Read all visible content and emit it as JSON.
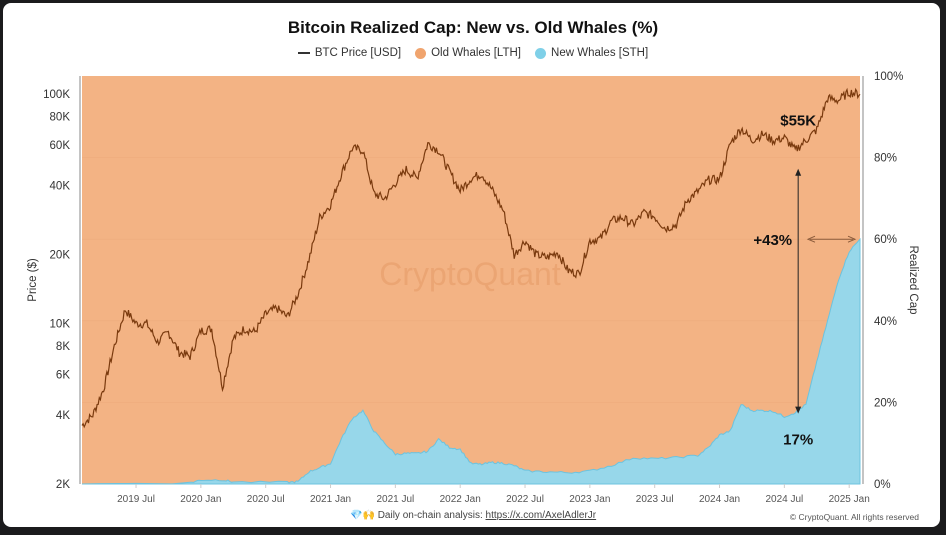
{
  "chart_data": {
    "type": "area",
    "title": "Bitcoin Realized Cap: New vs. Old Whales (%)",
    "legend": [
      {
        "label": "BTC Price [USD]",
        "color": "#7a3a0e",
        "kind": "line"
      },
      {
        "label": "Old Whales [LTH]",
        "color": "#f0a46e",
        "kind": "dot"
      },
      {
        "label": "New Whales [STH]",
        "color": "#7fd0e8",
        "kind": "dot"
      }
    ],
    "legend_position": "top-center",
    "ylabel_left": "Price ($)",
    "ylabel_right": "Realized Cap",
    "left_axis": {
      "scale": "log",
      "range": [
        2000,
        120000
      ],
      "ticks": [
        {
          "v": 2000,
          "label": "2K"
        },
        {
          "v": 4000,
          "label": "4K"
        },
        {
          "v": 6000,
          "label": "6K"
        },
        {
          "v": 8000,
          "label": "8K"
        },
        {
          "v": 10000,
          "label": "10K"
        },
        {
          "v": 20000,
          "label": "20K"
        },
        {
          "v": 40000,
          "label": "40K"
        },
        {
          "v": 60000,
          "label": "60K"
        },
        {
          "v": 80000,
          "label": "80K"
        },
        {
          "v": 100000,
          "label": "100K"
        }
      ]
    },
    "right_axis": {
      "range": [
        0,
        100
      ],
      "ticks": [
        {
          "v": 0,
          "label": "0%"
        },
        {
          "v": 20,
          "label": "20%"
        },
        {
          "v": 40,
          "label": "40%"
        },
        {
          "v": 60,
          "label": "60%"
        },
        {
          "v": 80,
          "label": "80%"
        },
        {
          "v": 100,
          "label": "100%"
        }
      ]
    },
    "x_axis": {
      "range": [
        "2019-02",
        "2025-02"
      ],
      "ticks": [
        {
          "v": "2019-07",
          "label": "2019 Jul"
        },
        {
          "v": "2020-01",
          "label": "2020 Jan"
        },
        {
          "v": "2020-07",
          "label": "2020 Jul"
        },
        {
          "v": "2021-01",
          "label": "2021 Jan"
        },
        {
          "v": "2021-07",
          "label": "2021 Jul"
        },
        {
          "v": "2022-01",
          "label": "2022 Jan"
        },
        {
          "v": "2022-07",
          "label": "2022 Jul"
        },
        {
          "v": "2023-01",
          "label": "2023 Jan"
        },
        {
          "v": "2023-07",
          "label": "2023 Jul"
        },
        {
          "v": "2024-01",
          "label": "2024 Jan"
        },
        {
          "v": "2024-07",
          "label": "2024 Jul"
        },
        {
          "v": "2025-01",
          "label": "2025 Jan"
        }
      ]
    },
    "btc_price": [
      [
        "2019-02",
        3600
      ],
      [
        "2019-03",
        4000
      ],
      [
        "2019-04",
        5200
      ],
      [
        "2019-05",
        8000
      ],
      [
        "2019-06",
        11500
      ],
      [
        "2019-07",
        10000
      ],
      [
        "2019-08",
        10000
      ],
      [
        "2019-09",
        8300
      ],
      [
        "2019-10",
        9200
      ],
      [
        "2019-11",
        7500
      ],
      [
        "2019-12",
        7200
      ],
      [
        "2020-01",
        9300
      ],
      [
        "2020-02",
        9500
      ],
      [
        "2020-03",
        5300
      ],
      [
        "2020-04",
        8600
      ],
      [
        "2020-05",
        9500
      ],
      [
        "2020-06",
        9200
      ],
      [
        "2020-07",
        11000
      ],
      [
        "2020-08",
        11700
      ],
      [
        "2020-09",
        10700
      ],
      [
        "2020-10",
        13500
      ],
      [
        "2020-11",
        19000
      ],
      [
        "2020-12",
        29000
      ],
      [
        "2021-01",
        33000
      ],
      [
        "2021-02",
        45000
      ],
      [
        "2021-03",
        58000
      ],
      [
        "2021-04",
        57000
      ],
      [
        "2021-05",
        37000
      ],
      [
        "2021-06",
        35000
      ],
      [
        "2021-07",
        41000
      ],
      [
        "2021-08",
        47000
      ],
      [
        "2021-09",
        43000
      ],
      [
        "2021-10",
        61000
      ],
      [
        "2021-11",
        57000
      ],
      [
        "2021-12",
        46000
      ],
      [
        "2022-01",
        38000
      ],
      [
        "2022-02",
        43000
      ],
      [
        "2022-03",
        45000
      ],
      [
        "2022-04",
        38000
      ],
      [
        "2022-05",
        31000
      ],
      [
        "2022-06",
        19900
      ],
      [
        "2022-07",
        23000
      ],
      [
        "2022-08",
        20000
      ],
      [
        "2022-09",
        19400
      ],
      [
        "2022-10",
        20500
      ],
      [
        "2022-11",
        17000
      ],
      [
        "2022-12",
        16500
      ],
      [
        "2023-01",
        23000
      ],
      [
        "2023-02",
        23500
      ],
      [
        "2023-03",
        28000
      ],
      [
        "2023-04",
        29000
      ],
      [
        "2023-05",
        27000
      ],
      [
        "2023-06",
        30500
      ],
      [
        "2023-07",
        29200
      ],
      [
        "2023-08",
        26000
      ],
      [
        "2023-09",
        27000
      ],
      [
        "2023-10",
        34500
      ],
      [
        "2023-11",
        37700
      ],
      [
        "2023-12",
        42300
      ],
      [
        "2024-01",
        42500
      ],
      [
        "2024-02",
        61000
      ],
      [
        "2024-03",
        71000
      ],
      [
        "2024-04",
        63000
      ],
      [
        "2024-05",
        67000
      ],
      [
        "2024-06",
        62700
      ],
      [
        "2024-07",
        64600
      ],
      [
        "2024-08",
        57000
      ],
      [
        "2024-09",
        63000
      ],
      [
        "2024-10",
        70000
      ],
      [
        "2024-11",
        96000
      ],
      [
        "2024-12",
        94000
      ],
      [
        "2025-01",
        102000
      ],
      [
        "2025-02",
        100000
      ]
    ],
    "new_whales_pct": [
      [
        "2019-02",
        0
      ],
      [
        "2019-12",
        0.3
      ],
      [
        "2020-01",
        1.0
      ],
      [
        "2020-03",
        1.0
      ],
      [
        "2020-04",
        0.5
      ],
      [
        "2020-09",
        0.4
      ],
      [
        "2020-10",
        0.6
      ],
      [
        "2020-11",
        3
      ],
      [
        "2020-12",
        4
      ],
      [
        "2021-01",
        5
      ],
      [
        "2021-02",
        11
      ],
      [
        "2021-03",
        16
      ],
      [
        "2021-04",
        18
      ],
      [
        "2021-05",
        13
      ],
      [
        "2021-06",
        10
      ],
      [
        "2021-07",
        7.3
      ],
      [
        "2021-08",
        7.5
      ],
      [
        "2021-09",
        7.5
      ],
      [
        "2021-10",
        8
      ],
      [
        "2021-11",
        11
      ],
      [
        "2021-12",
        9
      ],
      [
        "2022-01",
        8.5
      ],
      [
        "2022-02",
        5
      ],
      [
        "2022-03",
        4.8
      ],
      [
        "2022-04",
        5.3
      ],
      [
        "2022-05",
        5.1
      ],
      [
        "2022-06",
        4.5
      ],
      [
        "2022-07",
        3.2
      ],
      [
        "2022-09",
        3.0
      ],
      [
        "2022-11",
        2.8
      ],
      [
        "2023-01",
        3.2
      ],
      [
        "2023-03",
        4.5
      ],
      [
        "2023-05",
        6.4
      ],
      [
        "2023-07",
        6.2
      ],
      [
        "2023-09",
        6.5
      ],
      [
        "2023-11",
        7.0
      ],
      [
        "2023-12",
        9
      ],
      [
        "2024-01",
        12
      ],
      [
        "2024-02",
        13
      ],
      [
        "2024-03",
        19.5
      ],
      [
        "2024-04",
        18
      ],
      [
        "2024-05",
        18
      ],
      [
        "2024-06",
        17.8
      ],
      [
        "2024-07",
        16.5
      ],
      [
        "2024-08",
        17.5
      ],
      [
        "2024-09",
        19.5
      ],
      [
        "2024-10",
        30
      ],
      [
        "2024-11",
        40
      ],
      [
        "2024-12",
        50
      ],
      [
        "2025-01",
        57
      ],
      [
        "2025-02",
        60
      ]
    ],
    "annotations": [
      {
        "text": "$55K",
        "at": [
          "2024-08",
          55000
        ]
      },
      {
        "text": "+43%",
        "kind": "vertical-arrow",
        "from_pct": 17,
        "to_price": 55000,
        "date": "2024-08"
      },
      {
        "text": "17%",
        "at": [
          "2024-08",
          17
        ]
      },
      {
        "kind": "horizontal-arrow",
        "pct": 60
      }
    ],
    "watermark": "CryptoQuant"
  },
  "footer": {
    "prefix": "Daily on-chain analysis: ",
    "link": "https://x.com/AxelAdlerJr",
    "copyright": "© CryptoQuant. All rights reserved"
  }
}
